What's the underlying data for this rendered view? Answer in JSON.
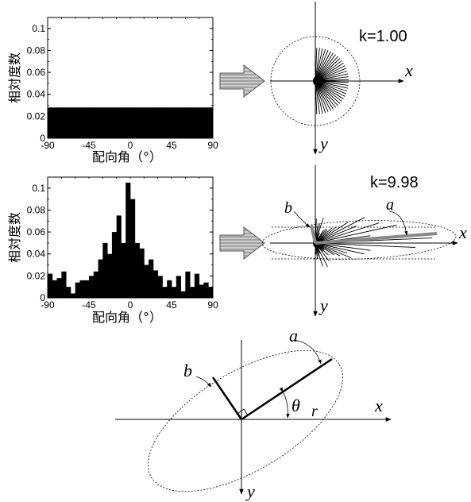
{
  "chart_data": [
    {
      "type": "bar",
      "ylabel": "相対度数",
      "xlabel": "配向角（°）",
      "xlim": [
        -90,
        90
      ],
      "ylim": [
        0,
        0.11
      ],
      "xticks": [
        "-90",
        "-45",
        "0",
        "45",
        "90"
      ],
      "yticks": [
        "0",
        "0.02",
        "0.04",
        "0.06",
        "0.08",
        "0.1"
      ],
      "bin_width": 5,
      "values": [
        0.028,
        0.028,
        0.028,
        0.028,
        0.028,
        0.028,
        0.028,
        0.028,
        0.028,
        0.028,
        0.028,
        0.028,
        0.028,
        0.028,
        0.028,
        0.028,
        0.028,
        0.028,
        0.028,
        0.028,
        0.028,
        0.028,
        0.028,
        0.028,
        0.028,
        0.028,
        0.028,
        0.028,
        0.028,
        0.028,
        0.028,
        0.028,
        0.028,
        0.028,
        0.028,
        0.028
      ]
    },
    {
      "type": "bar",
      "ylabel": "相対度数",
      "xlabel": "配向角（°）",
      "xlim": [
        -90,
        90
      ],
      "ylim": [
        0,
        0.11
      ],
      "xticks": [
        "-90",
        "-45",
        "0",
        "45",
        "90"
      ],
      "yticks": [
        "0",
        "0.02",
        "0.04",
        "0.06",
        "0.08",
        "0.1"
      ],
      "bin_width": 5,
      "values": [
        0.022,
        0.016,
        0.018,
        0.024,
        0.01,
        0.004,
        0.014,
        0.016,
        0.016,
        0.02,
        0.024,
        0.035,
        0.05,
        0.04,
        0.06,
        0.075,
        0.05,
        0.105,
        0.09,
        0.05,
        0.045,
        0.03,
        0.035,
        0.025,
        0.02,
        0.01,
        0.016,
        0.01,
        0.02,
        0.006,
        0.024,
        0.01,
        0.022,
        0.012,
        0.014,
        0.01
      ]
    }
  ],
  "diagram": {
    "top_k_label": "k=1.00",
    "mid_k_label": "k=9.98",
    "axis_x": "x",
    "axis_y": "y",
    "label_a": "a",
    "label_b": "b",
    "label_theta": "θ",
    "label_r": "r"
  },
  "colors": {
    "ink": "#000000",
    "arrow_fill": "#bbbbbb",
    "stripe": "#777777",
    "gray_axis": "#888888"
  }
}
